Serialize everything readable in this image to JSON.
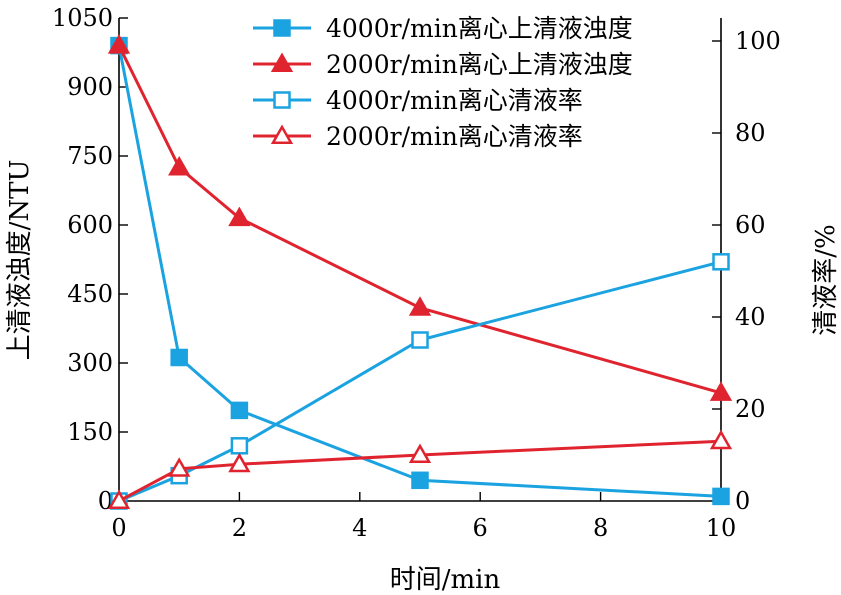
{
  "chart_data": {
    "type": "line",
    "x": [
      0,
      1,
      2,
      5,
      10
    ],
    "xlabel": "时间/min",
    "ylabel_left": "上清液浊度/NTU",
    "ylabel_right": "清液率/%",
    "xlim": [
      0,
      10
    ],
    "ylim_left": [
      0,
      1050
    ],
    "ylim_right": [
      0,
      105
    ],
    "xticks": [
      "0",
      "2",
      "4",
      "6",
      "8",
      "10"
    ],
    "yticks_left": [
      "0",
      "150",
      "300",
      "450",
      "600",
      "750",
      "900",
      "1050"
    ],
    "yticks_right": [
      "0",
      "20",
      "40",
      "60",
      "80",
      "100"
    ],
    "grid": false,
    "legend_position": "top-right",
    "series": [
      {
        "name": "4000r/min离心上清液浊度",
        "axis": "left",
        "marker": "filled-square",
        "color": "#1aa3e0",
        "values": [
          990,
          312,
          197,
          45,
          10
        ]
      },
      {
        "name": "2000r/min离心上清液浊度",
        "axis": "left",
        "marker": "filled-triangle",
        "color": "#e0242f",
        "values": [
          990,
          725,
          615,
          420,
          235
        ]
      },
      {
        "name": "4000r/min离心清液率",
        "axis": "right",
        "marker": "open-square",
        "color": "#1aa3e0",
        "values": [
          0,
          5.5,
          12,
          35,
          52
        ]
      },
      {
        "name": "2000r/min离心清液率",
        "axis": "right",
        "marker": "open-triangle",
        "color": "#e0242f",
        "values": [
          0,
          7,
          8,
          10,
          13
        ]
      }
    ]
  }
}
